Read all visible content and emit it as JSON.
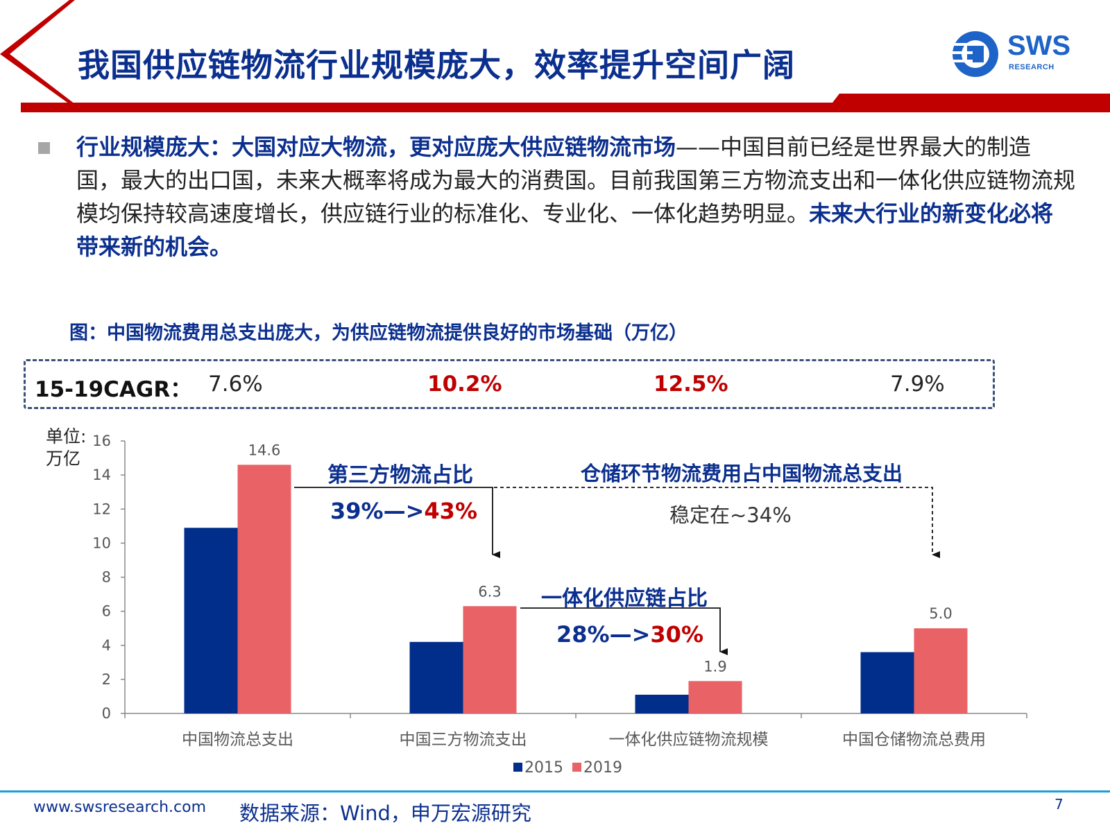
{
  "header": {
    "title": "我国供应链物流行业规模庞大，效率提升空间广阔",
    "logo_text": "SWS",
    "logo_sub": "RESEARCH",
    "accent_color": "#c00000",
    "title_color": "#0b2f8e"
  },
  "body": {
    "highlight_1": "行业规模庞大：大国对应大物流，更对应庞大供应链物流市场",
    "text_1": "——中国目前已经是世界最大的制造国，最大的出口国，未来大概率将成为最大的消费国。目前我国第三方物流支出和一体化供应链物流规模均保持较高速度增长，供应链行业的标准化、专业化、一体化趋势明显。",
    "highlight_2": "未来大行业的新变化必将带来新的机会。"
  },
  "figure": {
    "caption": "图：中国物流费用总支出庞大，为供应链物流提供良好的市场基础（万亿）",
    "cagr_label": "15-19CAGR：",
    "cagr_values": [
      "7.6%",
      "10.2%",
      "12.5%",
      "7.9%"
    ],
    "unit_line1": "单位:",
    "unit_line2": "万亿"
  },
  "annotations": {
    "third_party_title": "第三方物流占比",
    "third_party_from": "39%—>",
    "third_party_to": "43%",
    "warehouse_title": "仓储环节物流费用占中国物流总支出",
    "warehouse_value": "稳定在~34%",
    "integrated_title": "一体化供应链占比",
    "integrated_from": "28%—>",
    "integrated_to": "30%"
  },
  "chart_data": {
    "type": "bar",
    "categories": [
      "中国物流总支出",
      "中国三方物流支出",
      "一体化供应链物流规模",
      "中国仓储物流总费用"
    ],
    "series": [
      {
        "name": "2015",
        "values": [
          10.9,
          4.2,
          1.1,
          3.6
        ],
        "color": "#002e8a"
      },
      {
        "name": "2019",
        "values": [
          14.6,
          6.3,
          1.9,
          5.0
        ],
        "color": "#e96266"
      }
    ],
    "data_labels": [
      "14.6",
      "6.3",
      "1.9",
      "5.0"
    ],
    "ylim": [
      0,
      16
    ],
    "yticks": [
      0,
      2,
      4,
      6,
      8,
      10,
      12,
      14,
      16
    ],
    "legend": "bottom",
    "grid": false
  },
  "footer": {
    "url": "www.swsresearch.com",
    "source": "数据来源：Wind，申万宏源研究",
    "page": "7",
    "line_color": "#1aa0d8"
  }
}
